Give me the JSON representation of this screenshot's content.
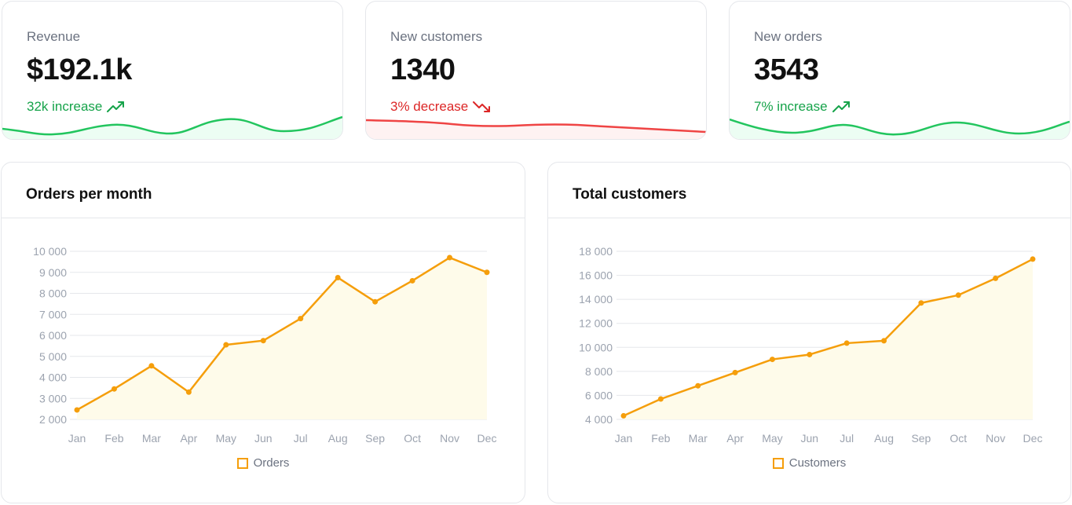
{
  "colors": {
    "positive": "#16a34a",
    "negative": "#dc2626",
    "series": "#f59e0b",
    "series_fill": "#fefbea"
  },
  "stats": [
    {
      "label": "Revenue",
      "value": "$192.1k",
      "change": "32k increase",
      "trend": "up"
    },
    {
      "label": "New customers",
      "value": "1340",
      "change": "3% decrease",
      "trend": "down"
    },
    {
      "label": "New orders",
      "value": "3543",
      "change": "7% increase",
      "trend": "up"
    }
  ],
  "charts": {
    "orders": {
      "title": "Orders per month",
      "legend": "Orders"
    },
    "customers": {
      "title": "Total customers",
      "legend": "Customers"
    }
  },
  "chart_data": [
    {
      "type": "area",
      "title": "Orders per month",
      "categories": [
        "Jan",
        "Feb",
        "Mar",
        "Apr",
        "May",
        "Jun",
        "Jul",
        "Aug",
        "Sep",
        "Oct",
        "Nov",
        "Dec"
      ],
      "series": [
        {
          "name": "Orders",
          "values": [
            2450,
            3450,
            4550,
            3300,
            5550,
            5750,
            6800,
            8750,
            7600,
            8600,
            9700,
            9000
          ]
        }
      ],
      "yticks": [
        2000,
        3000,
        4000,
        5000,
        6000,
        7000,
        8000,
        9000,
        10000
      ],
      "ytick_labels": [
        "2 000",
        "3 000",
        "4 000",
        "5 000",
        "6 000",
        "7 000",
        "8 000",
        "9 000",
        "10 000"
      ],
      "ylim": [
        2000,
        10000
      ],
      "grid": true,
      "legend": "bottom-center"
    },
    {
      "type": "area",
      "title": "Total customers",
      "categories": [
        "Jan",
        "Feb",
        "Mar",
        "Apr",
        "May",
        "Jun",
        "Jul",
        "Aug",
        "Sep",
        "Oct",
        "Nov",
        "Dec"
      ],
      "series": [
        {
          "name": "Customers",
          "values": [
            4300,
            5700,
            6800,
            7900,
            9000,
            9400,
            10350,
            10550,
            13700,
            14350,
            15750,
            17350
          ]
        }
      ],
      "yticks": [
        4000,
        6000,
        8000,
        10000,
        12000,
        14000,
        16000,
        18000
      ],
      "ytick_labels": [
        "4 000",
        "6 000",
        "8 000",
        "10 000",
        "12 000",
        "14 000",
        "16 000",
        "18 000"
      ],
      "ylim": [
        4000,
        18000
      ],
      "grid": true,
      "legend": "bottom-center"
    }
  ]
}
